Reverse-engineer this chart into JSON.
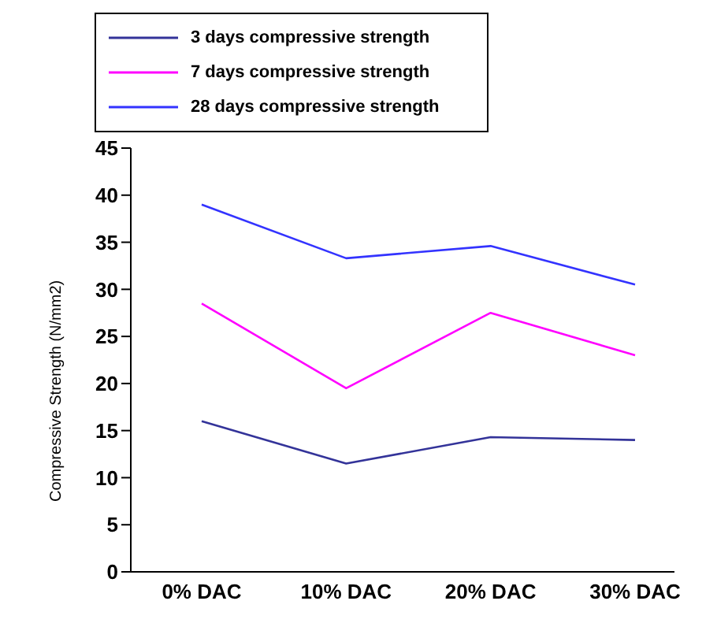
{
  "chart_data": {
    "type": "line",
    "ylabel": "Compressive Strength (N/mm2)",
    "categories": [
      "0% DAC",
      "10% DAC",
      "20% DAC",
      "30% DAC"
    ],
    "series": [
      {
        "name": "3 days compressive strength",
        "color": "#333399",
        "values": [
          16,
          11.5,
          14.3,
          14
        ]
      },
      {
        "name": "7 days compressive strength",
        "color": "#ff00ff",
        "values": [
          28.5,
          19.5,
          27.5,
          23
        ]
      },
      {
        "name": "28 days compressive strength",
        "color": "#3333ff",
        "values": [
          39,
          33.3,
          34.6,
          30.5
        ]
      }
    ],
    "ylim": [
      0,
      45
    ],
    "yticks": [
      0,
      5,
      10,
      15,
      20,
      25,
      30,
      35,
      40,
      45
    ],
    "grid": false,
    "legend": "top",
    "marker": "none",
    "line_style": "solid"
  }
}
